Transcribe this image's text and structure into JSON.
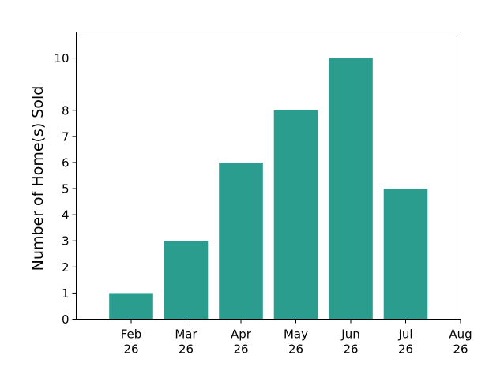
{
  "chart_data": {
    "type": "bar",
    "title": "",
    "xlabel": "",
    "ylabel": "Number of Home(s) Sold",
    "x_ticks": [
      {
        "line1": "Feb",
        "line2": "26"
      },
      {
        "line1": "Mar",
        "line2": "26"
      },
      {
        "line1": "Apr",
        "line2": "26"
      },
      {
        "line1": "May",
        "line2": "26"
      },
      {
        "line1": "Jun",
        "line2": "26"
      },
      {
        "line1": "Jul",
        "line2": "26"
      },
      {
        "line1": "Aug",
        "line2": "26"
      }
    ],
    "categories": [
      "Feb 26",
      "Mar 26",
      "Apr 26",
      "May 26",
      "Jun 26",
      "Jul 26"
    ],
    "values": [
      1,
      3,
      6,
      8,
      10,
      5
    ],
    "y_ticks": [
      0,
      1,
      2,
      3,
      4,
      5,
      6,
      7,
      8,
      10
    ],
    "ylim": [
      0,
      11
    ],
    "grid": false,
    "bar_color": "#2a9d8f"
  }
}
